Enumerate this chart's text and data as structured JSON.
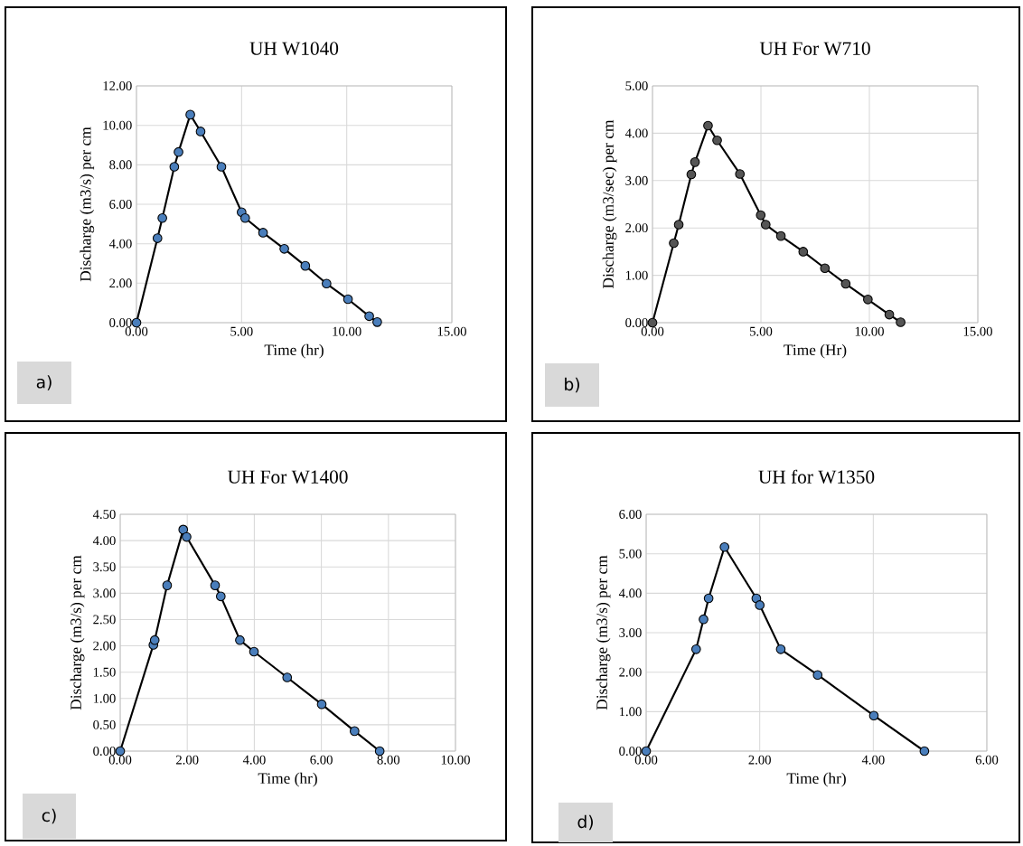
{
  "chart_data": [
    {
      "type": "line",
      "title": "UH W1040",
      "xlabel": "Time (hr)",
      "ylabel": "Discharge (m3/s) per cm",
      "marker": "circle",
      "grid": true,
      "annotations": [
        "a)"
      ],
      "xlim": [
        0,
        15
      ],
      "ylim": [
        0,
        12
      ],
      "xticks": [
        {
          "value": 0,
          "label": "0.00"
        },
        {
          "value": 5,
          "label": "5.00"
        },
        {
          "value": 10,
          "label": "10.00"
        },
        {
          "value": 15,
          "label": "15.00"
        }
      ],
      "yticks": [
        {
          "value": 0,
          "label": "0.00"
        },
        {
          "value": 2,
          "label": "2.00"
        },
        {
          "value": 4,
          "label": "4.00"
        },
        {
          "value": 6,
          "label": "6.00"
        },
        {
          "value": 8,
          "label": "8.00"
        },
        {
          "value": 10,
          "label": "10.00"
        },
        {
          "value": 12,
          "label": "12.00"
        }
      ],
      "series": [
        {
          "color": "#4a7ebb",
          "x": [
            0,
            1.0,
            1.23,
            1.8,
            2.0,
            2.56,
            3.05,
            4.04,
            5.0,
            5.17,
            6.02,
            7.03,
            8.03,
            9.04,
            10.06,
            11.07,
            11.45
          ],
          "values": [
            0,
            4.28,
            5.3,
            7.9,
            8.65,
            10.54,
            9.69,
            7.9,
            5.6,
            5.3,
            4.56,
            3.74,
            2.88,
            1.98,
            1.19,
            0.33,
            0.03
          ]
        }
      ]
    },
    {
      "type": "line",
      "title": "UH For W710",
      "xlabel": "Time (Hr)",
      "ylabel": "Discharge (m3/sec) per cm",
      "marker": "circle",
      "grid": true,
      "annotations": [
        "b)"
      ],
      "xlim": [
        0,
        15
      ],
      "ylim": [
        0,
        5
      ],
      "xticks": [
        {
          "value": 0,
          "label": "0.00"
        },
        {
          "value": 5,
          "label": "5.00"
        },
        {
          "value": 10,
          "label": "10.00"
        },
        {
          "value": 15,
          "label": "15.00"
        }
      ],
      "yticks": [
        {
          "value": 0,
          "label": "0.00"
        },
        {
          "value": 1,
          "label": "1.00"
        },
        {
          "value": 2,
          "label": "2.00"
        },
        {
          "value": 3,
          "label": "3.00"
        },
        {
          "value": 4,
          "label": "4.00"
        },
        {
          "value": 5,
          "label": "5.00"
        }
      ],
      "series": [
        {
          "color": "#555555",
          "x": [
            0,
            0.98,
            1.21,
            1.79,
            1.96,
            2.56,
            2.98,
            4.03,
            4.99,
            5.22,
            5.92,
            6.95,
            7.95,
            8.91,
            9.93,
            10.92,
            11.44
          ],
          "values": [
            0,
            1.68,
            2.07,
            3.13,
            3.39,
            4.16,
            3.85,
            3.14,
            2.27,
            2.07,
            1.83,
            1.5,
            1.15,
            0.82,
            0.49,
            0.17,
            0.01
          ]
        }
      ]
    },
    {
      "type": "line",
      "title": "UH For W1400",
      "xlabel": "Time (hr)",
      "ylabel": "Discharge (m3/s) per cm",
      "marker": "circle",
      "grid": true,
      "annotations": [
        "c)"
      ],
      "xlim": [
        0,
        10
      ],
      "ylim": [
        0,
        4.5
      ],
      "xticks": [
        {
          "value": 0,
          "label": "0.00"
        },
        {
          "value": 2,
          "label": "2.00"
        },
        {
          "value": 4,
          "label": "4.00"
        },
        {
          "value": 6,
          "label": "6.00"
        },
        {
          "value": 8,
          "label": "8.00"
        },
        {
          "value": 10,
          "label": "10.00"
        }
      ],
      "yticks": [
        {
          "value": 0,
          "label": "0.00"
        },
        {
          "value": 0.5,
          "label": "0.50"
        },
        {
          "value": 1,
          "label": "1.00"
        },
        {
          "value": 1.5,
          "label": "1.50"
        },
        {
          "value": 2,
          "label": "2.00"
        },
        {
          "value": 2.5,
          "label": "2.50"
        },
        {
          "value": 3,
          "label": "3.00"
        },
        {
          "value": 3.5,
          "label": "3.50"
        },
        {
          "value": 4,
          "label": "4.00"
        },
        {
          "value": 4.5,
          "label": "4.50"
        }
      ],
      "series": [
        {
          "color": "#4a7ebb",
          "x": [
            0,
            0.99,
            1.03,
            1.4,
            1.88,
            1.98,
            2.83,
            3.0,
            3.57,
            3.99,
            4.98,
            6.01,
            6.99,
            7.74
          ],
          "values": [
            0,
            2.02,
            2.11,
            3.15,
            4.21,
            4.07,
            3.15,
            2.94,
            2.11,
            1.89,
            1.4,
            0.89,
            0.38,
            0
          ]
        }
      ]
    },
    {
      "type": "line",
      "title": "UH for W1350",
      "xlabel": "Time (hr)",
      "ylabel": "Discharge (m3/s) per cm",
      "marker": "circle",
      "grid": true,
      "annotations": [
        "d)"
      ],
      "xlim": [
        0,
        6
      ],
      "ylim": [
        0,
        6
      ],
      "xticks": [
        {
          "value": 0,
          "label": "0.00"
        },
        {
          "value": 2,
          "label": "2.00"
        },
        {
          "value": 4,
          "label": "4.00"
        },
        {
          "value": 6,
          "label": "6.00"
        }
      ],
      "yticks": [
        {
          "value": 0,
          "label": "0.00"
        },
        {
          "value": 1,
          "label": "1.00"
        },
        {
          "value": 2,
          "label": "2.00"
        },
        {
          "value": 3,
          "label": "3.00"
        },
        {
          "value": 4,
          "label": "4.00"
        },
        {
          "value": 5,
          "label": "5.00"
        },
        {
          "value": 6,
          "label": "6.00"
        }
      ],
      "series": [
        {
          "color": "#4a7ebb",
          "x": [
            0,
            0.88,
            1.01,
            1.1,
            1.38,
            1.94,
            2.0,
            2.37,
            3.02,
            4.01,
            4.9
          ],
          "values": [
            0,
            2.58,
            3.34,
            3.87,
            5.17,
            3.87,
            3.7,
            2.58,
            1.93,
            0.9,
            0
          ]
        }
      ]
    }
  ]
}
